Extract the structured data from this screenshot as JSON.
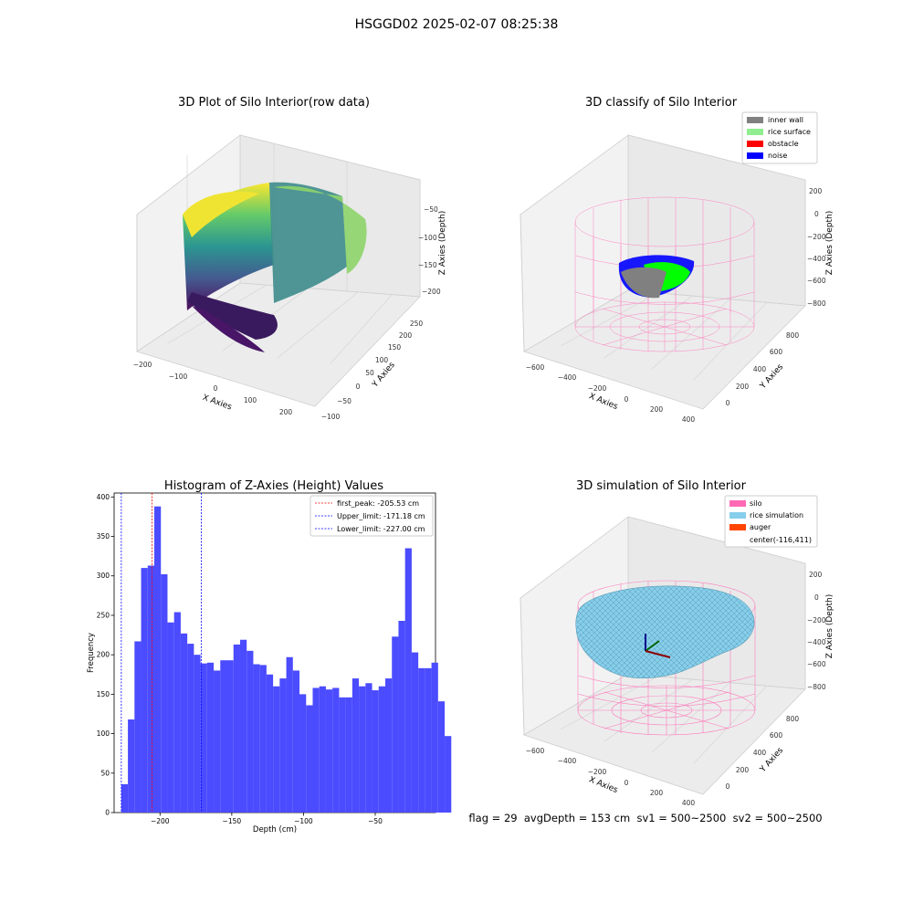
{
  "suptitle": "HSGGD02 2025-02-07 08:25:38",
  "panels": {
    "raw": {
      "title": "3D Plot of Silo Interior(row data)",
      "xlabel": "X Axies",
      "ylabel": "Y Axies",
      "zlabel": "Z Axies (Depth)",
      "xticks": [
        "−200",
        "−100",
        "0",
        "100",
        "200"
      ],
      "yticks": [
        "−100",
        "−50",
        "0",
        "50",
        "100",
        "150",
        "200",
        "250"
      ],
      "zticks": [
        "−50",
        "−100",
        "−150",
        "−200"
      ]
    },
    "classify": {
      "title": "3D classify of Silo Interior",
      "xlabel": "X Axies",
      "ylabel": "Y Axies",
      "zlabel": "Z Axies (Depth)",
      "xticks": [
        "−600",
        "−400",
        "−200",
        "0",
        "200",
        "400"
      ],
      "yticks": [
        "0",
        "200",
        "400",
        "600",
        "800"
      ],
      "zticks": [
        "200",
        "0",
        "−200",
        "−400",
        "−600",
        "−800"
      ],
      "legend": [
        {
          "label": "inner wall",
          "color": "#808080"
        },
        {
          "label": "rice surface",
          "color": "#90ee90"
        },
        {
          "label": "obstacle",
          "color": "#ff0000"
        },
        {
          "label": "noise",
          "color": "#0000ff"
        }
      ]
    },
    "simulation": {
      "title": "3D simulation of Silo Interior",
      "xlabel": "X Axies",
      "ylabel": "Y Axies",
      "zlabel": "Z Axies (Depth)",
      "xticks": [
        "−600",
        "−400",
        "−200",
        "0",
        "200",
        "400"
      ],
      "yticks": [
        "0",
        "200",
        "400",
        "600",
        "800"
      ],
      "zticks": [
        "200",
        "0",
        "−200",
        "−400",
        "−600",
        "−800"
      ],
      "legend": [
        {
          "label": "silo",
          "color": "#ff69b4"
        },
        {
          "label": "rice simulation",
          "color": "#87ceeb"
        },
        {
          "label": "auger",
          "color": "#ff4500"
        },
        {
          "label": "center(-116,411)",
          "color": ""
        }
      ]
    },
    "footer": "flag = 29  avgDepth = 153 cm  sv1 = 500~2500  sv2 = 500~2500"
  },
  "chart_data": {
    "type": "bar",
    "title": "Histogram of Z-Axies (Height) Values",
    "xlabel": "Depth (cm)",
    "ylabel": "Frequency",
    "xlim": [
      -232,
      -8
    ],
    "ylim": [
      0,
      405
    ],
    "xticks": [
      -200,
      -150,
      -100,
      -50
    ],
    "yticks": [
      0,
      50,
      100,
      150,
      200,
      250,
      300,
      350,
      400
    ],
    "bar_color": "#4b4bff",
    "bin_start": -227.0,
    "bin_width": 4.6,
    "values": [
      36,
      118,
      217,
      310,
      313,
      388,
      302,
      241,
      254,
      227,
      214,
      200,
      189,
      190,
      180,
      193,
      193,
      213,
      219,
      205,
      188,
      187,
      175,
      160,
      170,
      197,
      180,
      150,
      136,
      158,
      160,
      156,
      158,
      146,
      146,
      170,
      160,
      164,
      155,
      160,
      170,
      223,
      243,
      335,
      203,
      183,
      183,
      190,
      141,
      97
    ],
    "vlines": [
      {
        "value": -205.53,
        "label": "first_peak: -205.53 cm",
        "color": "#ff0000"
      },
      {
        "value": -171.18,
        "label": "Upper_limit: -171.18 cm",
        "color": "#0000ff"
      },
      {
        "value": -227.0,
        "label": "Lower_limit: -227.00 cm",
        "color": "#0000ff"
      }
    ],
    "legend_position": "upper right"
  }
}
